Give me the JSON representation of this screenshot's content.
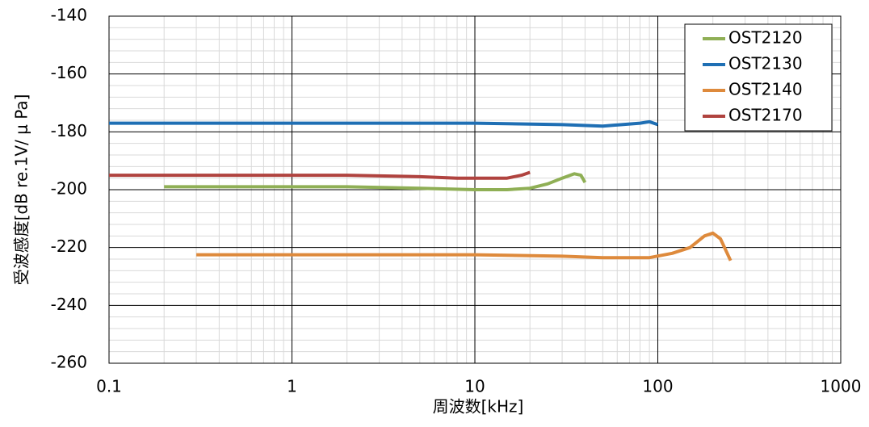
{
  "chart_data": {
    "type": "line",
    "x_label": "周波数[kHz]",
    "y_label": "受波感度[dB re.1V/ μ Pa]",
    "xscale": "log",
    "xlim": [
      0.1,
      1000
    ],
    "xticks": [
      0.1,
      1,
      10,
      100,
      1000
    ],
    "ylim": [
      -260,
      -140
    ],
    "yticks": [
      -140,
      -160,
      -180,
      -200,
      -220,
      -240,
      -260
    ],
    "grid": true,
    "minor_grid": true,
    "legend": "upper right",
    "series": [
      {
        "name": "OST2120",
        "color": "#8faf55",
        "x": [
          0.2,
          2,
          5,
          10,
          15,
          20,
          25,
          30,
          35,
          38,
          40
        ],
        "values": [
          -199,
          -199,
          -199.5,
          -200,
          -200,
          -199.5,
          -198,
          -196,
          -194.5,
          -195,
          -197.5
        ]
      },
      {
        "name": "OST2130",
        "color": "#1f6fb4",
        "x": [
          0.1,
          10,
          30,
          50,
          80,
          90,
          100
        ],
        "values": [
          -177,
          -177,
          -177.5,
          -178,
          -177,
          -176.5,
          -177.5
        ]
      },
      {
        "name": "OST2140",
        "color": "#de8a3c",
        "x": [
          0.3,
          10,
          30,
          50,
          90,
          120,
          150,
          180,
          200,
          220,
          250
        ],
        "values": [
          -222.5,
          -222.5,
          -223,
          -223.5,
          -223.5,
          -222,
          -220,
          -216,
          -215,
          -217,
          -224.5
        ]
      },
      {
        "name": "OST2170",
        "color": "#b0433f",
        "x": [
          0.1,
          2,
          5,
          8,
          15,
          18,
          20
        ],
        "values": [
          -195,
          -195,
          -195.5,
          -196,
          -196,
          -195,
          -194
        ]
      }
    ]
  }
}
